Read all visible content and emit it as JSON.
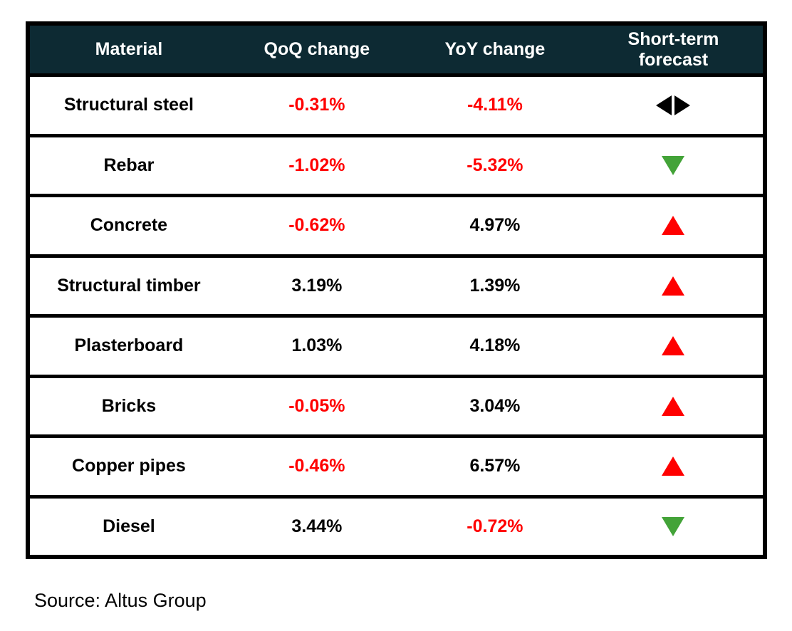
{
  "table": {
    "columns": [
      {
        "label": "Material"
      },
      {
        "label": "QoQ change"
      },
      {
        "label": "YoY change"
      },
      {
        "label": "Short-term forecast"
      }
    ],
    "rows": [
      {
        "material": "Structural steel",
        "qoq": "-0.31%",
        "yoy": "-4.11%",
        "forecast": "neutral"
      },
      {
        "material": "Rebar",
        "qoq": "-1.02%",
        "yoy": "-5.32%",
        "forecast": "down"
      },
      {
        "material": "Concrete",
        "qoq": "-0.62%",
        "yoy": "4.97%",
        "forecast": "up"
      },
      {
        "material": "Structural timber",
        "qoq": "3.19%",
        "yoy": "1.39%",
        "forecast": "up"
      },
      {
        "material": "Plasterboard",
        "qoq": "1.03%",
        "yoy": "4.18%",
        "forecast": "up"
      },
      {
        "material": "Bricks",
        "qoq": "-0.05%",
        "yoy": "3.04%",
        "forecast": "up"
      },
      {
        "material": "Copper pipes",
        "qoq": "-0.46%",
        "yoy": "6.57%",
        "forecast": "up"
      },
      {
        "material": "Diesel",
        "qoq": "3.44%",
        "yoy": "-0.72%",
        "forecast": "down"
      }
    ]
  },
  "source": "Source: Altus Group",
  "colors": {
    "header_bg": "#0d2a33",
    "header_text": "#ffffff",
    "negative": "#ff0000",
    "positive_text": "#000000",
    "up_triangle": "#ff0000",
    "down_triangle": "#43a338",
    "neutral_triangle": "#000000",
    "border": "#000000"
  },
  "chart_data": {
    "type": "table",
    "title": "",
    "columns": [
      "Material",
      "QoQ change",
      "YoY change",
      "Short-term forecast"
    ],
    "units": "percent",
    "rows": [
      {
        "material": "Structural steel",
        "qoq_change_pct": -0.31,
        "yoy_change_pct": -4.11,
        "short_term_forecast": "neutral"
      },
      {
        "material": "Rebar",
        "qoq_change_pct": -1.02,
        "yoy_change_pct": -5.32,
        "short_term_forecast": "down"
      },
      {
        "material": "Concrete",
        "qoq_change_pct": -0.62,
        "yoy_change_pct": 4.97,
        "short_term_forecast": "up"
      },
      {
        "material": "Structural timber",
        "qoq_change_pct": 3.19,
        "yoy_change_pct": 1.39,
        "short_term_forecast": "up"
      },
      {
        "material": "Plasterboard",
        "qoq_change_pct": 1.03,
        "yoy_change_pct": 4.18,
        "short_term_forecast": "up"
      },
      {
        "material": "Bricks",
        "qoq_change_pct": -0.05,
        "yoy_change_pct": 3.04,
        "short_term_forecast": "up"
      },
      {
        "material": "Copper pipes",
        "qoq_change_pct": -0.46,
        "yoy_change_pct": 6.57,
        "short_term_forecast": "up"
      },
      {
        "material": "Diesel",
        "qoq_change_pct": 3.44,
        "yoy_change_pct": -0.72,
        "short_term_forecast": "down"
      }
    ],
    "source": "Source: Altus Group"
  }
}
